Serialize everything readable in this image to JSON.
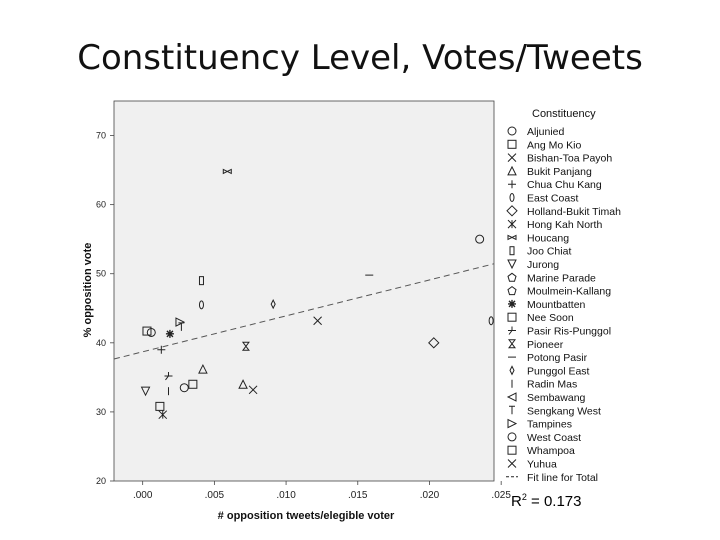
{
  "slide": {
    "title": "Constituency Level, Votes/Tweets"
  },
  "r_squared": {
    "label": "R",
    "sup": "2",
    "value": " = 0.173"
  },
  "colors": {
    "plot_bg": "#f0f0f0",
    "marker": "#222222",
    "fit_line": "#555555"
  },
  "chart_data": {
    "type": "scatter",
    "xlabel": "# opposition tweets/elegible voter",
    "ylabel": "% opposition vote",
    "xlim": [
      -0.002,
      0.0245
    ],
    "ylim": [
      20,
      75
    ],
    "x_ticks": [
      ".000",
      ".005",
      ".010",
      ".015",
      ".020",
      ".025"
    ],
    "x_tick_values": [
      0.0,
      0.005,
      0.01,
      0.015,
      0.02,
      0.025
    ],
    "y_ticks": [
      "20",
      "30",
      "40",
      "50",
      "60",
      "70"
    ],
    "y_tick_values": [
      20,
      30,
      40,
      50,
      60,
      70
    ],
    "grid": false,
    "legend": {
      "title": "Constituency",
      "placement": "right",
      "entries": [
        {
          "name": "Aljunied",
          "marker": "circle"
        },
        {
          "name": "Ang Mo Kio",
          "marker": "square"
        },
        {
          "name": "Bishan-Toa Payoh",
          "marker": "x"
        },
        {
          "name": "Bukit Panjang",
          "marker": "triangle"
        },
        {
          "name": "Chua Chu Kang",
          "marker": "plus"
        },
        {
          "name": "East Coast",
          "marker": "ellipse"
        },
        {
          "name": "Holland-Bukit Timah",
          "marker": "diamond"
        },
        {
          "name": "Hong Kah North",
          "marker": "star"
        },
        {
          "name": "Houcang",
          "marker": "bowtie"
        },
        {
          "name": "Joo Chiat",
          "marker": "rect-tall"
        },
        {
          "name": "Jurong",
          "marker": "triangle-down"
        },
        {
          "name": "Marine Parade",
          "marker": "pentagon"
        },
        {
          "name": "Moulmein-Kallang",
          "marker": "pentagon"
        },
        {
          "name": "Mountbatten",
          "marker": "asterisk"
        },
        {
          "name": "Nee Soon",
          "marker": "square"
        },
        {
          "name": "Pasir Ris-Punggol",
          "marker": "tri-cross"
        },
        {
          "name": "Pioneer",
          "marker": "hourglass"
        },
        {
          "name": "Potong Pasir",
          "marker": "hline"
        },
        {
          "name": "Punggol East",
          "marker": "thin-diamond"
        },
        {
          "name": "Radin Mas",
          "marker": "vline"
        },
        {
          "name": "Sembawang",
          "marker": "triangle-left"
        },
        {
          "name": "Sengkang West",
          "marker": "arrow-up"
        },
        {
          "name": "Tampines",
          "marker": "triangle-right"
        },
        {
          "name": "West Coast",
          "marker": "circle"
        },
        {
          "name": "Whampoa",
          "marker": "square"
        },
        {
          "name": "Yuhua",
          "marker": "x"
        },
        {
          "name": "Fit line for Total",
          "marker": "dash"
        }
      ]
    },
    "points": [
      {
        "x": 0.0006,
        "y": 41.5,
        "marker": "circle"
      },
      {
        "x": 0.0029,
        "y": 33.5,
        "marker": "circle"
      },
      {
        "x": 0.0235,
        "y": 55.0,
        "marker": "circle"
      },
      {
        "x": 0.0003,
        "y": 41.7,
        "marker": "square"
      },
      {
        "x": 0.0035,
        "y": 34.0,
        "marker": "square"
      },
      {
        "x": 0.0012,
        "y": 30.8,
        "marker": "square"
      },
      {
        "x": 0.0077,
        "y": 33.2,
        "marker": "x"
      },
      {
        "x": 0.0042,
        "y": 36.2,
        "marker": "triangle"
      },
      {
        "x": 0.007,
        "y": 34.0,
        "marker": "triangle"
      },
      {
        "x": 0.0013,
        "y": 39.0,
        "marker": "plus"
      },
      {
        "x": 0.0243,
        "y": 43.2,
        "marker": "ellipse"
      },
      {
        "x": 0.0041,
        "y": 45.5,
        "marker": "ellipse"
      },
      {
        "x": 0.0203,
        "y": 40.0,
        "marker": "diamond"
      },
      {
        "x": 0.0014,
        "y": 29.6,
        "marker": "star"
      },
      {
        "x": 0.0059,
        "y": 64.8,
        "marker": "bowtie"
      },
      {
        "x": 0.0041,
        "y": 49.0,
        "marker": "rect-tall"
      },
      {
        "x": 0.0002,
        "y": 33.0,
        "marker": "triangle-down"
      },
      {
        "x": 0.0019,
        "y": 41.3,
        "marker": "asterisk"
      },
      {
        "x": 0.0018,
        "y": 35.2,
        "marker": "tri-cross"
      },
      {
        "x": 0.0072,
        "y": 39.5,
        "marker": "hourglass"
      },
      {
        "x": 0.0158,
        "y": 49.8,
        "marker": "hline"
      },
      {
        "x": 0.0091,
        "y": 45.6,
        "marker": "thin-diamond"
      },
      {
        "x": 0.0018,
        "y": 33.0,
        "marker": "vline"
      },
      {
        "x": 0.0027,
        "y": 42.3,
        "marker": "arrow-up"
      },
      {
        "x": 0.0026,
        "y": 43.0,
        "marker": "triangle-right"
      },
      {
        "x": 0.0122,
        "y": 43.2,
        "marker": "x"
      }
    ],
    "fit_line": {
      "intercept": 38.7,
      "slope": 520
    }
  }
}
